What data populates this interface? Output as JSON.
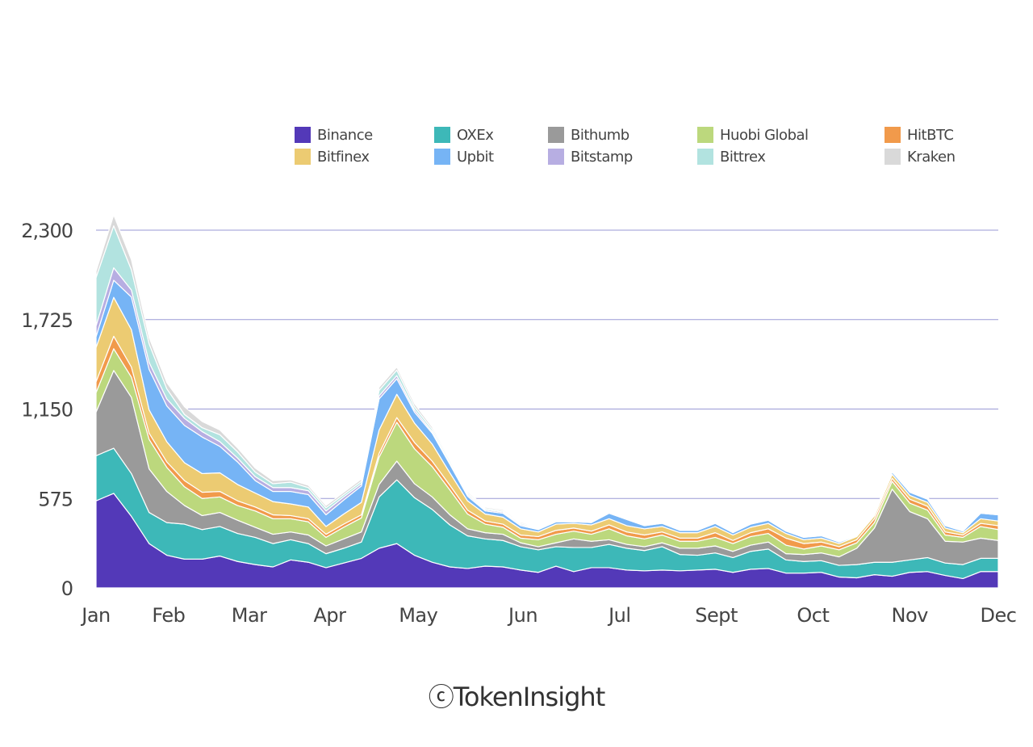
{
  "chart_data": {
    "type": "area",
    "stacked": true,
    "title": "",
    "xlabel": "",
    "ylabel": "",
    "ylim": [
      0,
      2300
    ],
    "yticks": [
      0,
      575,
      1150,
      1725,
      2300
    ],
    "ytick_labels": [
      "0",
      "575",
      "1,150",
      "1,725",
      "2,300"
    ],
    "xtick_labels": [
      "Jan",
      "Feb",
      "Mar",
      "Apr",
      "May",
      "Jun",
      "Jul",
      "Sept",
      "Oct",
      "Nov",
      "Dec"
    ],
    "xtick_positions": [
      0,
      4.5,
      9.5,
      14.5,
      20,
      26.5,
      32.5,
      38.5,
      44.5,
      50.5,
      56
    ],
    "x_max": 56,
    "grid": "horizontal",
    "legend_position": "top-right",
    "series": [
      {
        "name": "Binance",
        "color": "#5339b8",
        "values": [
          560,
          608,
          460,
          285,
          210,
          185,
          185,
          205,
          170,
          150,
          135,
          180,
          165,
          130,
          160,
          190,
          255,
          285,
          210,
          165,
          135,
          125,
          140,
          135,
          115,
          100,
          140,
          105,
          130,
          130,
          115,
          110,
          115,
          110,
          115,
          120,
          100,
          120,
          125,
          95,
          95,
          100,
          70,
          65,
          85,
          75,
          100,
          105,
          80,
          60,
          105,
          105
        ]
      },
      {
        "name": "OXEx",
        "color": "#3db8b8",
        "values": [
          290,
          290,
          275,
          200,
          210,
          225,
          190,
          190,
          180,
          175,
          150,
          130,
          120,
          90,
          95,
          105,
          330,
          410,
          370,
          340,
          270,
          210,
          175,
          170,
          150,
          145,
          125,
          155,
          130,
          150,
          140,
          130,
          150,
          105,
          95,
          105,
          95,
          115,
          125,
          85,
          75,
          75,
          75,
          85,
          80,
          90,
          80,
          90,
          80,
          90,
          85,
          85
        ]
      },
      {
        "name": "Bithumb",
        "color": "#9a9a9a",
        "values": [
          280,
          500,
          490,
          280,
          200,
          120,
          90,
          90,
          85,
          65,
          60,
          50,
          55,
          50,
          60,
          65,
          80,
          120,
          90,
          80,
          65,
          45,
          40,
          40,
          25,
          20,
          25,
          55,
          40,
          30,
          25,
          25,
          25,
          40,
          45,
          45,
          40,
          40,
          45,
          40,
          45,
          50,
          55,
          105,
          220,
          470,
          310,
          250,
          140,
          145,
          130,
          115
        ]
      },
      {
        "name": "Huobi Global",
        "color": "#bcd87d",
        "values": [
          125,
          140,
          130,
          190,
          155,
          120,
          110,
          100,
          95,
          105,
          100,
          85,
          85,
          55,
          75,
          90,
          175,
          250,
          225,
          195,
          160,
          95,
          55,
          45,
          30,
          45,
          55,
          50,
          45,
          70,
          55,
          50,
          50,
          45,
          45,
          55,
          50,
          55,
          55,
          55,
          35,
          45,
          45,
          35,
          35,
          50,
          55,
          55,
          40,
          30,
          75,
          70
        ]
      },
      {
        "name": "HitBTC",
        "color": "#f19a4b",
        "values": [
          70,
          80,
          65,
          40,
          35,
          40,
          40,
          35,
          30,
          25,
          25,
          20,
          20,
          20,
          20,
          20,
          25,
          30,
          40,
          35,
          30,
          25,
          20,
          20,
          20,
          20,
          25,
          20,
          20,
          25,
          25,
          25,
          20,
          20,
          20,
          30,
          20,
          25,
          30,
          45,
          35,
          25,
          20,
          20,
          25,
          20,
          25,
          25,
          20,
          15,
          20,
          25
        ]
      },
      {
        "name": "Bitfinex",
        "color": "#eccb72",
        "values": [
          220,
          250,
          240,
          150,
          130,
          115,
          120,
          120,
          105,
          90,
          85,
          75,
          75,
          50,
          65,
          80,
          150,
          150,
          125,
          110,
          80,
          60,
          45,
          45,
          40,
          30,
          40,
          30,
          40,
          40,
          40,
          40,
          35,
          35,
          35,
          40,
          35,
          35,
          35,
          30,
          25,
          25,
          20,
          20,
          20,
          25,
          25,
          25,
          25,
          15,
          30,
          30
        ]
      },
      {
        "name": "Upbit",
        "color": "#76b4f5",
        "values": [
          70,
          110,
          210,
          260,
          230,
          240,
          235,
          170,
          145,
          80,
          65,
          80,
          80,
          75,
          90,
          105,
          200,
          100,
          70,
          70,
          55,
          30,
          20,
          25,
          20,
          15,
          15,
          10,
          15,
          35,
          40,
          20,
          20,
          15,
          15,
          20,
          15,
          20,
          20,
          15,
          15,
          15,
          10,
          5,
          5,
          15,
          20,
          20,
          15,
          10,
          35,
          40
        ]
      },
      {
        "name": "Bitstamp",
        "color": "#b7aee2",
        "values": [
          70,
          80,
          45,
          45,
          45,
          45,
          35,
          30,
          25,
          25,
          25,
          25,
          25,
          25,
          20,
          15,
          20,
          20,
          15,
          10,
          10,
          10,
          8,
          8,
          8,
          5,
          5,
          5,
          5,
          5,
          5,
          5,
          5,
          5,
          5,
          5,
          5,
          5,
          5,
          5,
          5,
          5,
          5,
          5,
          5,
          5,
          5,
          5,
          5,
          5,
          5,
          5
        ]
      },
      {
        "name": "Bittrex",
        "color": "#b2e3e0",
        "values": [
          310,
          270,
          130,
          120,
          65,
          25,
          25,
          45,
          40,
          30,
          25,
          35,
          20,
          20,
          15,
          15,
          35,
          35,
          20,
          15,
          15,
          10,
          8,
          8,
          8,
          5,
          5,
          5,
          5,
          5,
          5,
          5,
          5,
          5,
          5,
          5,
          5,
          5,
          5,
          5,
          5,
          5,
          5,
          5,
          5,
          5,
          5,
          5,
          5,
          5,
          5,
          5
        ]
      },
      {
        "name": "Kraken",
        "color": "#d9d9d9",
        "values": [
          40,
          70,
          65,
          40,
          40,
          50,
          40,
          30,
          25,
          25,
          20,
          15,
          15,
          15,
          15,
          15,
          20,
          20,
          20,
          15,
          12,
          10,
          8,
          8,
          8,
          5,
          5,
          5,
          5,
          5,
          5,
          5,
          5,
          5,
          5,
          5,
          5,
          5,
          5,
          5,
          5,
          5,
          5,
          5,
          5,
          5,
          5,
          5,
          5,
          5,
          5,
          5
        ]
      }
    ]
  },
  "legend_items": [
    {
      "label": "Binance",
      "color": "#5339b8"
    },
    {
      "label": "OXEx",
      "color": "#3db8b8"
    },
    {
      "label": "Bithumb",
      "color": "#9a9a9a"
    },
    {
      "label": "Huobi Global",
      "color": "#bcd87d"
    },
    {
      "label": "HitBTC",
      "color": "#f19a4b"
    },
    {
      "label": "Bitfinex",
      "color": "#eccb72"
    },
    {
      "label": "Upbit",
      "color": "#76b4f5"
    },
    {
      "label": "Bitstamp",
      "color": "#b7aee2"
    },
    {
      "label": "Bittrex",
      "color": "#b2e3e0"
    },
    {
      "label": "Kraken",
      "color": "#d9d9d9"
    }
  ],
  "watermark": {
    "symbol": "ⓒ",
    "text": "TokenInsight"
  },
  "colors": {
    "gridline": "#9a9ad6",
    "text": "#444444"
  }
}
